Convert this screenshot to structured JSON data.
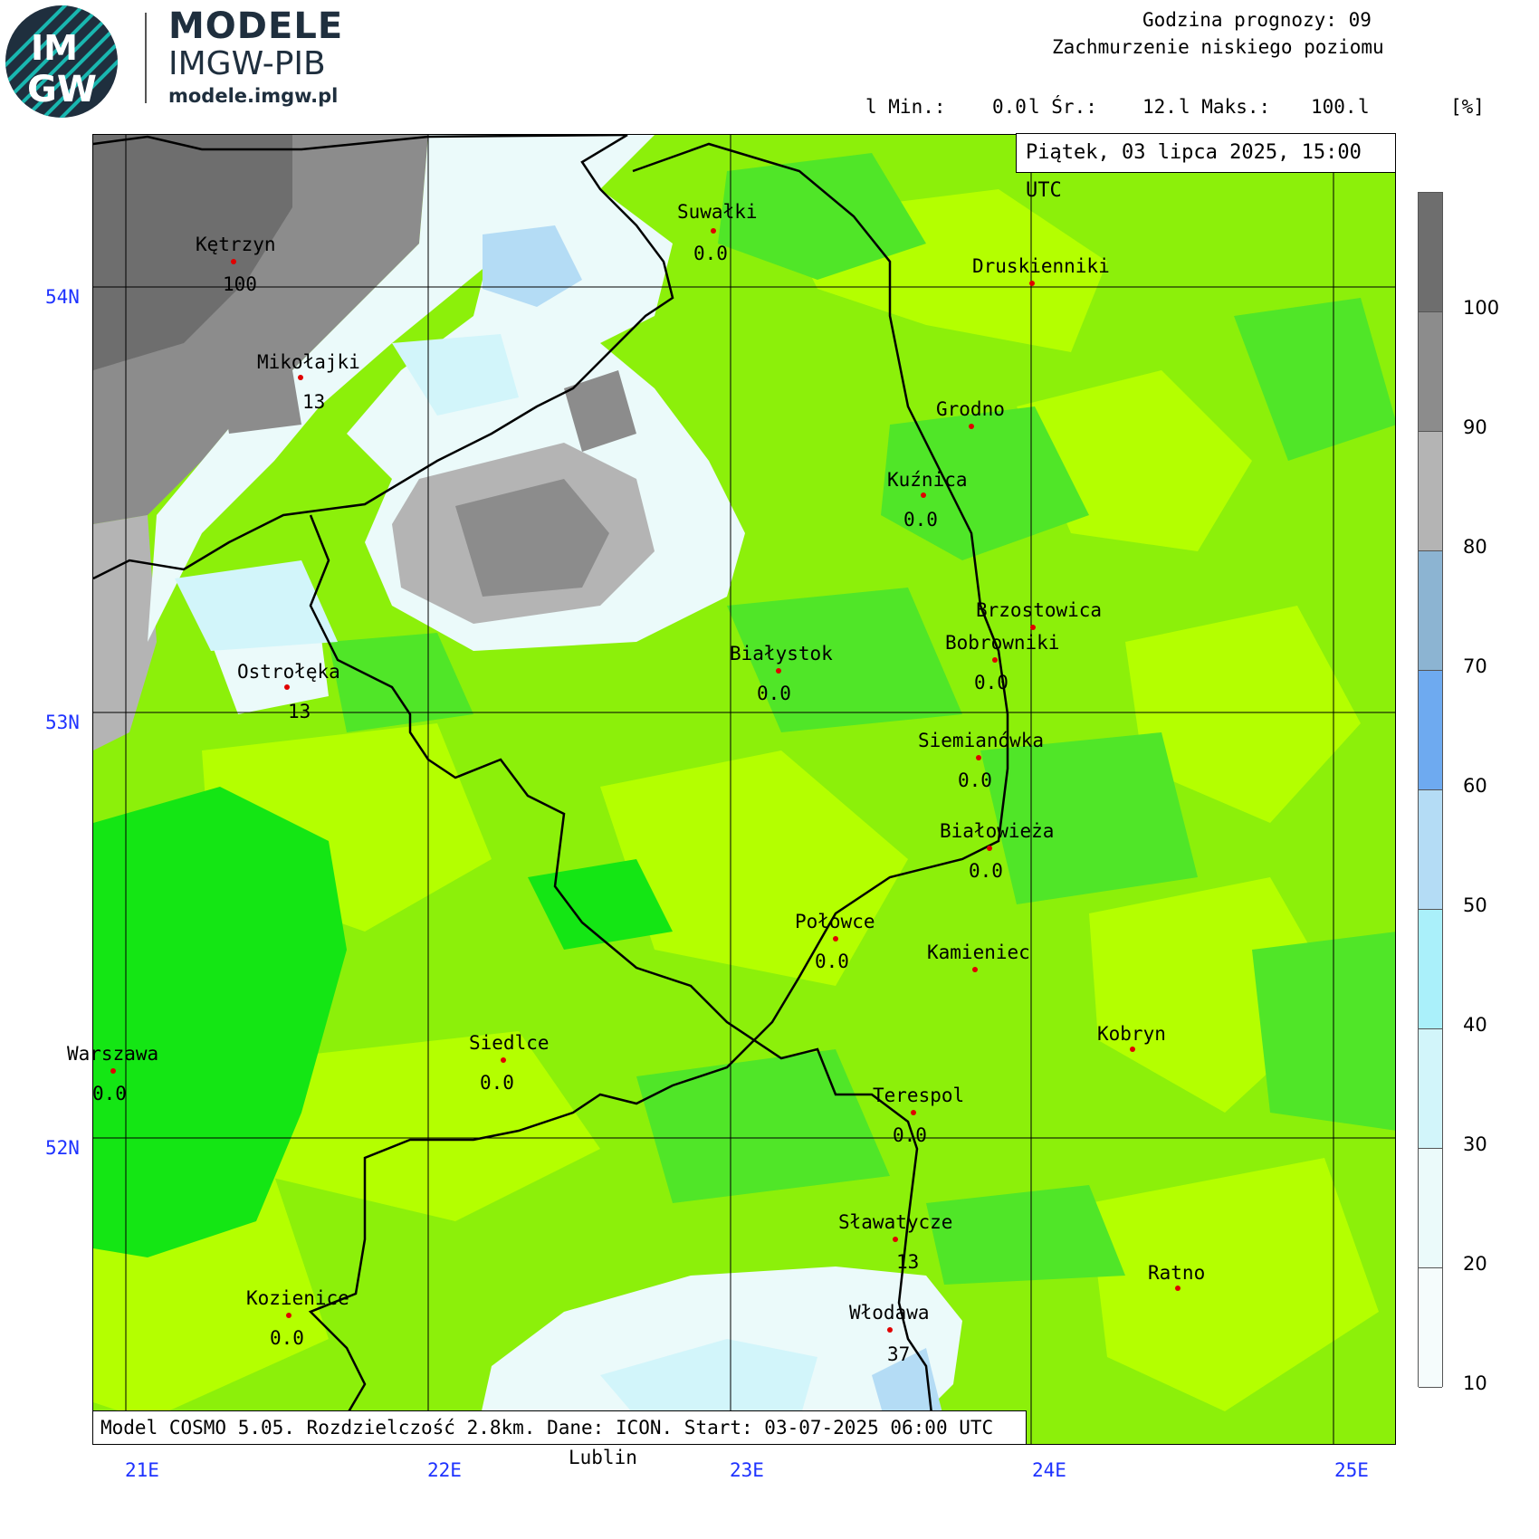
{
  "branding": {
    "logo_text_top": "IM",
    "logo_text_bottom": "GW",
    "title": "MODELE",
    "subtitle": "IMGW-PIB",
    "url": "modele.imgw.pl"
  },
  "header": {
    "forecast_hour_line": "Godzina prognozy: 09",
    "parameter_line": "Zachmurzenie niskiego poziomu",
    "stats": {
      "min_label": "l Min.:",
      "min_value": "0.0",
      "avg_label": "l Śr.:",
      "avg_value": "12.",
      "max_label": "l Maks.:",
      "max_value": "100.",
      "end_bar": "l",
      "unit": "[%]"
    },
    "valid_time": "Piątek, 03 lipca 2025, 15:00 UTC"
  },
  "footer": {
    "model_info": "Model COSMO 5.05. Rozdzielczość 2.8km. Dane: ICON. Start: 03-07-2025 06:00 UTC",
    "extra_city": "Lublin"
  },
  "axes": {
    "latitudes": [
      "54N",
      "53N",
      "52N"
    ],
    "longitudes": [
      "21E",
      "22E",
      "23E",
      "24E",
      "25E"
    ]
  },
  "legend": {
    "ticks": [
      "100",
      "90",
      "80",
      "70",
      "60",
      "50",
      "40",
      "30",
      "20",
      "10"
    ],
    "colors": [
      "#6e6e6e",
      "#8c8c8c",
      "#b4b4b4",
      "#8cb4d2",
      "#6eaaf0",
      "#b4dcf5",
      "#aaf0fa",
      "#d2f5fa",
      "#ebfafa",
      "#f5fcfc"
    ]
  },
  "palette": {
    "green_dark": "#14e614",
    "green_mid": "#50e628",
    "green_light": "#8cf00a",
    "green_lime": "#b4ff00",
    "border_line": "#000000",
    "grid_line": "#000000",
    "axis_label": "#1e32ff",
    "city_dot": "#e00000"
  },
  "cities": [
    {
      "name": "Kętrzyn",
      "value": "100"
    },
    {
      "name": "Suwałki",
      "value": "0.0"
    },
    {
      "name": "Druskienniki",
      "value": ""
    },
    {
      "name": "Mikołajki",
      "value": "13"
    },
    {
      "name": "Grodno",
      "value": ""
    },
    {
      "name": "Kuźnica",
      "value": "0.0"
    },
    {
      "name": "Brzostowica",
      "value": ""
    },
    {
      "name": "Bobrowniki",
      "value": "0.0"
    },
    {
      "name": "Białystok",
      "value": "0.0"
    },
    {
      "name": "Ostrołęka",
      "value": "13"
    },
    {
      "name": "Siemianówka",
      "value": "0.0"
    },
    {
      "name": "Białowieża",
      "value": "0.0"
    },
    {
      "name": "Połowce",
      "value": "0.0"
    },
    {
      "name": "Kamieniec",
      "value": ""
    },
    {
      "name": "Kobryn",
      "value": ""
    },
    {
      "name": "Warszawa",
      "value": "0.0"
    },
    {
      "name": "Siedlce",
      "value": "0.0"
    },
    {
      "name": "Terespol",
      "value": "0.0"
    },
    {
      "name": "Sławatycze",
      "value": "13"
    },
    {
      "name": "Ratno",
      "value": ""
    },
    {
      "name": "Kozienice",
      "value": "0.0"
    },
    {
      "name": "Włodawa",
      "value": "37"
    }
  ]
}
